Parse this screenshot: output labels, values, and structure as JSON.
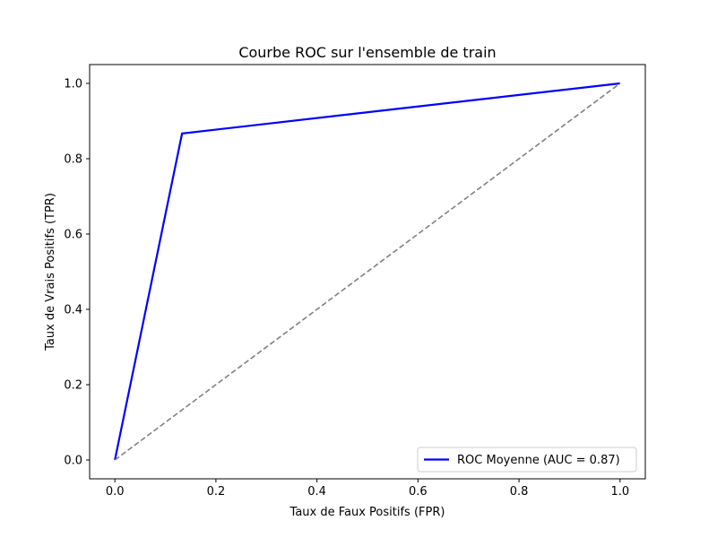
{
  "chart_data": {
    "type": "line",
    "title": "Courbe ROC sur l'ensemble de train",
    "xlabel": "Taux de Faux Positifs (FPR)",
    "ylabel": "Taux de Vrais Positifs (TPR)",
    "xlim": [
      -0.05,
      1.05
    ],
    "ylim": [
      -0.05,
      1.05
    ],
    "xticks": [
      0.0,
      0.2,
      0.4,
      0.6,
      0.8,
      1.0
    ],
    "yticks": [
      0.0,
      0.2,
      0.4,
      0.6,
      0.8,
      1.0
    ],
    "xtick_labels": [
      "0.0",
      "0.2",
      "0.4",
      "0.6",
      "0.8",
      "1.0"
    ],
    "ytick_labels": [
      "0.0",
      "0.2",
      "0.4",
      "0.6",
      "0.8",
      "1.0"
    ],
    "grid": false,
    "legend_position": "lower-right",
    "series": [
      {
        "name": "ROC Moyenne (AUC = 0.87)",
        "color": "#0000ff",
        "style": "solid",
        "x": [
          0.0,
          0.133,
          1.0
        ],
        "y": [
          0.0,
          0.867,
          1.0
        ]
      },
      {
        "color": "#808080",
        "style": "dashed",
        "x": [
          0.0,
          1.0
        ],
        "y": [
          0.0,
          1.0
        ]
      }
    ]
  }
}
